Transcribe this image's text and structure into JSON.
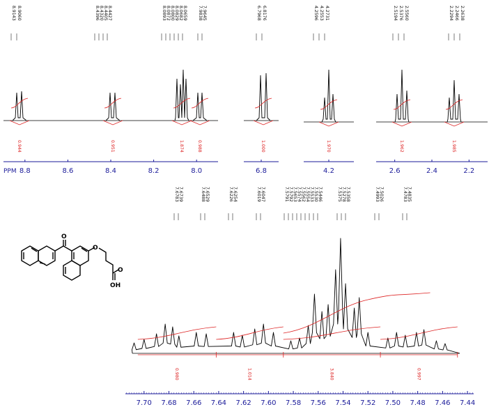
{
  "chart_data": [
    {
      "type": "line",
      "panel": "overview",
      "xlabel": "PPM",
      "axis_segments": [
        {
          "xlim": [
            8.9,
            7.9
          ],
          "ticks": [
            "8.8",
            "8.6",
            "8.4",
            "8.2",
            "8.0"
          ]
        },
        {
          "xlim": [
            6.88,
            6.72
          ],
          "ticks": [
            "6.8"
          ]
        },
        {
          "xlim": [
            4.3,
            4.1
          ],
          "ticks": [
            "4.2"
          ]
        },
        {
          "xlim": [
            2.7,
            2.1
          ],
          "ticks": [
            "2.6",
            "2.4",
            "2.2"
          ]
        }
      ],
      "peak_groups": [
        {
          "labels": [
            "8.9143",
            "8.9060"
          ],
          "integral": "0.944"
        },
        {
          "labels": [
            "8.4396",
            "8.4320",
            "8.4405",
            "8.4427"
          ],
          "integral": "0.951"
        },
        {
          "labels": [
            "8.0893",
            "8.0872",
            "8.0800",
            "8.0829",
            "8.0682",
            "8.0659"
          ],
          "integral": "1.874"
        },
        {
          "labels": [
            "7.9838",
            "7.9645"
          ],
          "integral": "0.988"
        },
        {
          "labels": [
            "6.7968",
            "6.8176"
          ],
          "integral": "1.000"
        },
        {
          "labels": [
            "4.2596",
            "4.2553",
            "4.2731"
          ],
          "integral": "1.970"
        },
        {
          "labels": [
            "2.5194",
            "2.5376",
            "2.5560"
          ],
          "integral": "1.962"
        },
        {
          "labels": [
            "2.2294",
            "2.2466",
            "2.2638"
          ],
          "integral": "1.985"
        }
      ]
    },
    {
      "type": "line",
      "panel": "expansion",
      "xlim": [
        7.715,
        7.435
      ],
      "ticks": [
        "7.70",
        "7.68",
        "7.66",
        "7.64",
        "7.62",
        "7.60",
        "7.58",
        "7.56",
        "7.54",
        "7.52",
        "7.50",
        "7.48",
        "7.46",
        "7.44"
      ],
      "peak_labels": [
        [
          "7.6783",
          "7.6739"
        ],
        [
          "7.6488",
          "7.6529"
        ],
        [
          "7.6226",
          "7.6254"
        ],
        [
          "7.6019",
          "7.6047"
        ],
        [
          "7.5791",
          "7.5792",
          "7.5653",
          "7.5574",
          "7.5562",
          "7.5554",
          "7.5533",
          "7.5530",
          "7.5446"
        ],
        [
          "7.5375",
          "7.5278",
          "7.5358"
        ],
        [
          "7.4993",
          "7.5026"
        ],
        [
          "7.4783",
          "7.4835"
        ]
      ],
      "integrals": [
        "0.980",
        "1.014",
        "3.840",
        "0.997"
      ]
    }
  ],
  "molecule": {
    "label": "OH",
    "oxygen_labels": [
      "O",
      "O",
      "O"
    ]
  }
}
